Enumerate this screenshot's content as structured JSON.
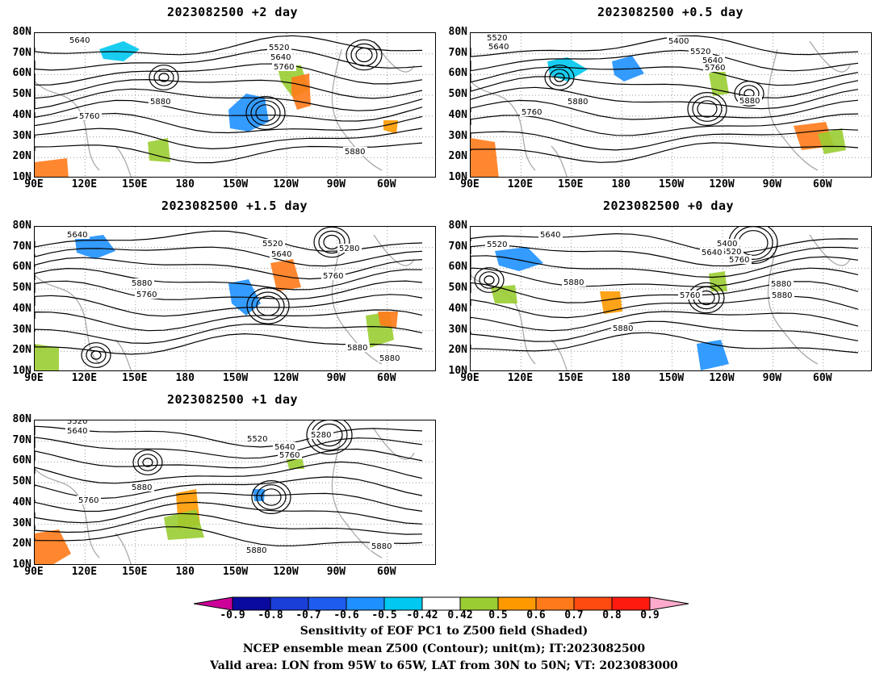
{
  "panels": [
    {
      "id": "p2",
      "title": "2023082500 +2 day",
      "contour_labels": [
        "5640",
        "5520",
        "5640",
        "5760",
        "5880",
        "5760",
        "5880"
      ]
    },
    {
      "id": "p05",
      "title": "2023082500 +0.5 day",
      "contour_labels": [
        "5520",
        "5640",
        "5400",
        "5520",
        "5640",
        "5760",
        "5880",
        "5760",
        "5880"
      ]
    },
    {
      "id": "p15",
      "title": "2023082500 +1.5 day",
      "contour_labels": [
        "5640",
        "5520",
        "5640",
        "5280",
        "5760",
        "5880",
        "5760",
        "5880",
        "5880"
      ]
    },
    {
      "id": "p0",
      "title": "2023082500 +0 day",
      "contour_labels": [
        "5520",
        "5640",
        "5400",
        "5520",
        "5640",
        "5760",
        "5880",
        "5760",
        "5880",
        "5880",
        "5880"
      ]
    },
    {
      "id": "p1",
      "title": "2023082500 +1 day",
      "contour_labels": [
        "5520",
        "5640",
        "5520",
        "5640",
        "5760",
        "5280",
        "5880",
        "5760",
        "5880",
        "5880"
      ]
    }
  ],
  "lat_ticks": [
    "80N",
    "70N",
    "60N",
    "50N",
    "40N",
    "30N",
    "20N",
    "10N"
  ],
  "lon_ticks": [
    "90E",
    "120E",
    "150E",
    "180",
    "150W",
    "120W",
    "90W",
    "60W"
  ],
  "colorbar": {
    "labels": [
      "-0.9",
      "-0.8",
      "-0.7",
      "-0.6",
      "-0.5",
      "-0.42",
      "0.42",
      "0.5",
      "0.6",
      "0.7",
      "0.8",
      "0.9"
    ],
    "colors": [
      "#cc0099",
      "#0a0aa0",
      "#1a3ed8",
      "#1e5cf0",
      "#1e90ff",
      "#00c8f0",
      "#ffffff",
      "#9acd32",
      "#ff9900",
      "#ff7a1a",
      "#ff4a10",
      "#ff1a10",
      "#ffaacc"
    ]
  },
  "captions": [
    "Sensitivity of EOF PC1 to Z500 field (Shaded)",
    "NCEP ensemble mean Z500 (Contour); unit(m); IT:2023082500",
    "Valid area: LON from 95W to 65W, LAT from 30N to 50N; VT: 2023083000"
  ]
}
